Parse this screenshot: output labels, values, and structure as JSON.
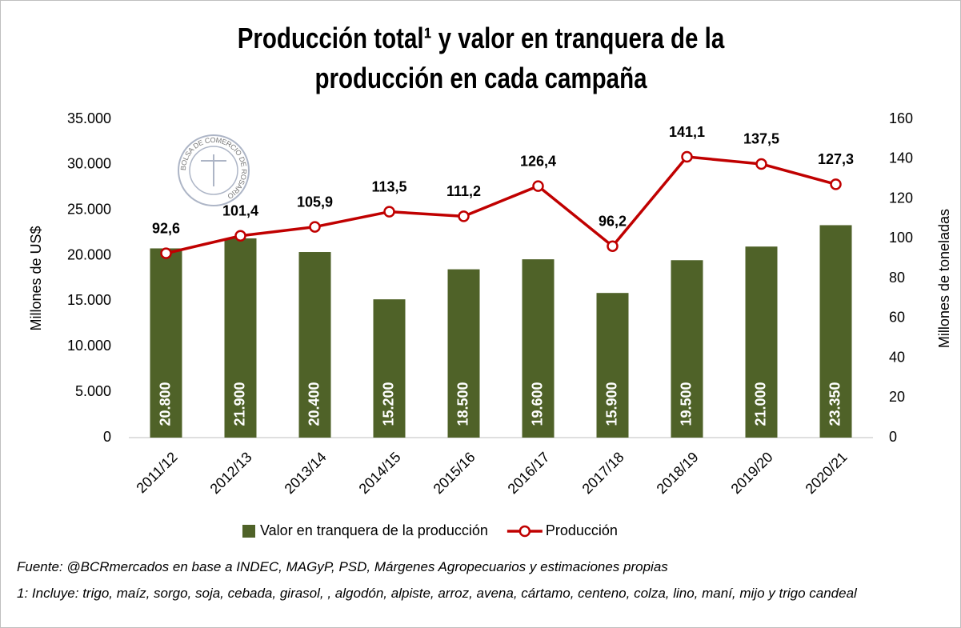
{
  "chart_data": {
    "type": "combo",
    "title": "Producción total¹ y valor en tranquera de la producción en cada campaña",
    "logo_text": "BOLSA DE COMERCIO DE ROSARIO",
    "ylabel": "Millones de US$",
    "y2label": "Millones de toneladas",
    "categories": [
      "2011/12",
      "2012/13",
      "2013/14",
      "2014/15",
      "2015/16",
      "2016/17",
      "2017/18",
      "2018/19",
      "2019/20",
      "2020/21"
    ],
    "series": [
      {
        "name": "Valor en tranquera de la producción",
        "type": "bar",
        "color": "#4f6228",
        "values": [
          20800,
          21900,
          20400,
          15200,
          18500,
          19600,
          15900,
          19500,
          21000,
          23350
        ],
        "value_labels": [
          "20.800",
          "21.900",
          "20.400",
          "15.200",
          "18.500",
          "19.600",
          "15.900",
          "19.500",
          "21.000",
          "23.350"
        ]
      },
      {
        "name": "Producción",
        "type": "line",
        "axis": "y2",
        "color": "#c00000",
        "values": [
          92.6,
          101.4,
          105.9,
          113.5,
          111.2,
          126.4,
          96.2,
          141.1,
          137.5,
          127.3
        ],
        "value_labels": [
          "92,6",
          "101,4",
          "105,9",
          "113,5",
          "111,2",
          "126,4",
          "96,2",
          "141,1",
          "137,5",
          "127,3"
        ]
      }
    ],
    "ylim": [
      0,
      35000
    ],
    "yticks": [
      0,
      {
        "value": 5000,
        "label": "5.000"
      },
      {
        "value": 10000,
        "label": "10.000"
      },
      {
        "value": 15000,
        "label": "15.000"
      },
      {
        "value": 20000,
        "label": "20.000"
      },
      {
        "value": 25000,
        "label": "25.000"
      },
      {
        "value": 30000,
        "label": "30.000"
      },
      {
        "value": 35000,
        "label": "35.000"
      }
    ],
    "y2lim": [
      0,
      160
    ],
    "y2ticks": [
      0,
      20,
      40,
      60,
      80,
      100,
      120,
      140,
      160
    ],
    "grid": false,
    "legend": "bottom",
    "notes": [
      "Fuente: @BCRmercados en base a INDEC, MAGyP, PSD, Márgenes Agropecuarios y estimaciones propias",
      "1: Incluye: trigo, maíz, sorgo, soja, cebada, girasol, , algodón, alpiste, arroz, avena, cártamo, centeno, colza, lino, maní, mijo y trigo candeal"
    ]
  }
}
